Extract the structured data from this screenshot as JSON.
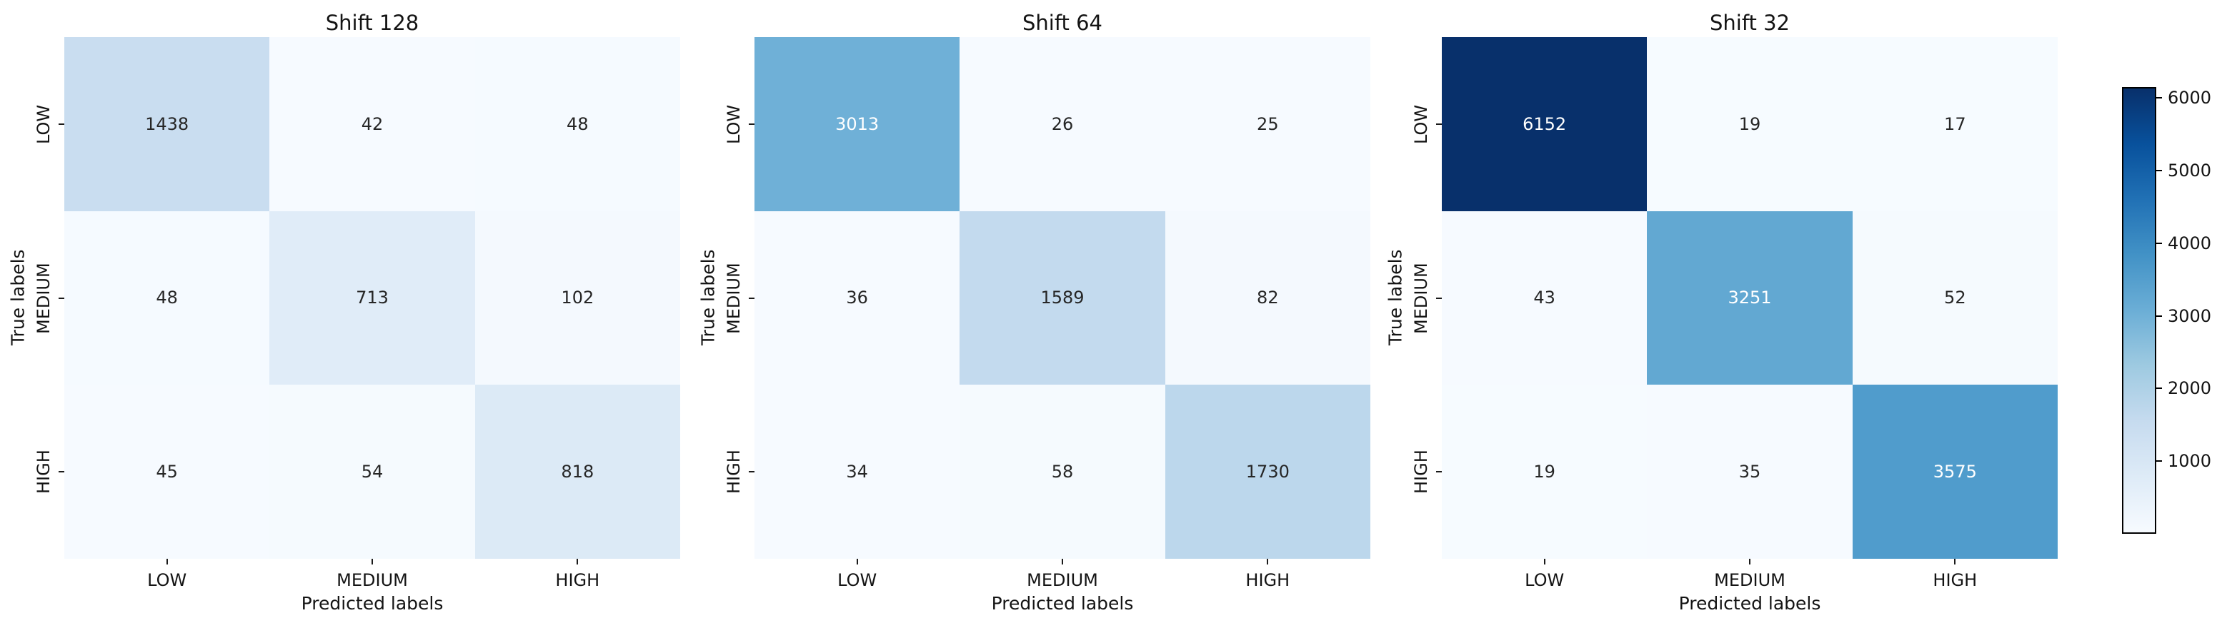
{
  "figure": {
    "background_color": "#ffffff",
    "annotation_dark_color": "#262626",
    "annotation_light_color": "#ffffff"
  },
  "chart_data": {
    "type": "heatmap",
    "subtype": "confusion-matrix-grid",
    "categories": [
      "LOW",
      "MEDIUM",
      "HIGH"
    ],
    "xlabel": "Predicted labels",
    "ylabel": "True labels",
    "vmin": 0,
    "vmax": 6152,
    "colormap": {
      "name": "Blues",
      "stops": [
        "#f7fbff",
        "#deebf7",
        "#c6dbef",
        "#9ecae1",
        "#6baed6",
        "#4292c6",
        "#2171b5",
        "#08519c",
        "#08306b"
      ]
    },
    "subplots": [
      {
        "title": "Shift 128",
        "rows": [
          "LOW",
          "MEDIUM",
          "HIGH"
        ],
        "cols": [
          "LOW",
          "MEDIUM",
          "HIGH"
        ],
        "matrix": [
          [
            1438,
            42,
            48
          ],
          [
            48,
            713,
            102
          ],
          [
            45,
            54,
            818
          ]
        ]
      },
      {
        "title": "Shift 64",
        "rows": [
          "LOW",
          "MEDIUM",
          "HIGH"
        ],
        "cols": [
          "LOW",
          "MEDIUM",
          "HIGH"
        ],
        "matrix": [
          [
            3013,
            26,
            25
          ],
          [
            36,
            1589,
            82
          ],
          [
            34,
            58,
            1730
          ]
        ]
      },
      {
        "title": "Shift 32",
        "rows": [
          "LOW",
          "MEDIUM",
          "HIGH"
        ],
        "cols": [
          "LOW",
          "MEDIUM",
          "HIGH"
        ],
        "matrix": [
          [
            6152,
            19,
            17
          ],
          [
            43,
            3251,
            52
          ],
          [
            19,
            35,
            3575
          ]
        ]
      }
    ],
    "colorbar": {
      "position": "right",
      "ticks": [
        1000,
        2000,
        3000,
        4000,
        5000,
        6000
      ]
    },
    "grid": false,
    "legend": false
  }
}
